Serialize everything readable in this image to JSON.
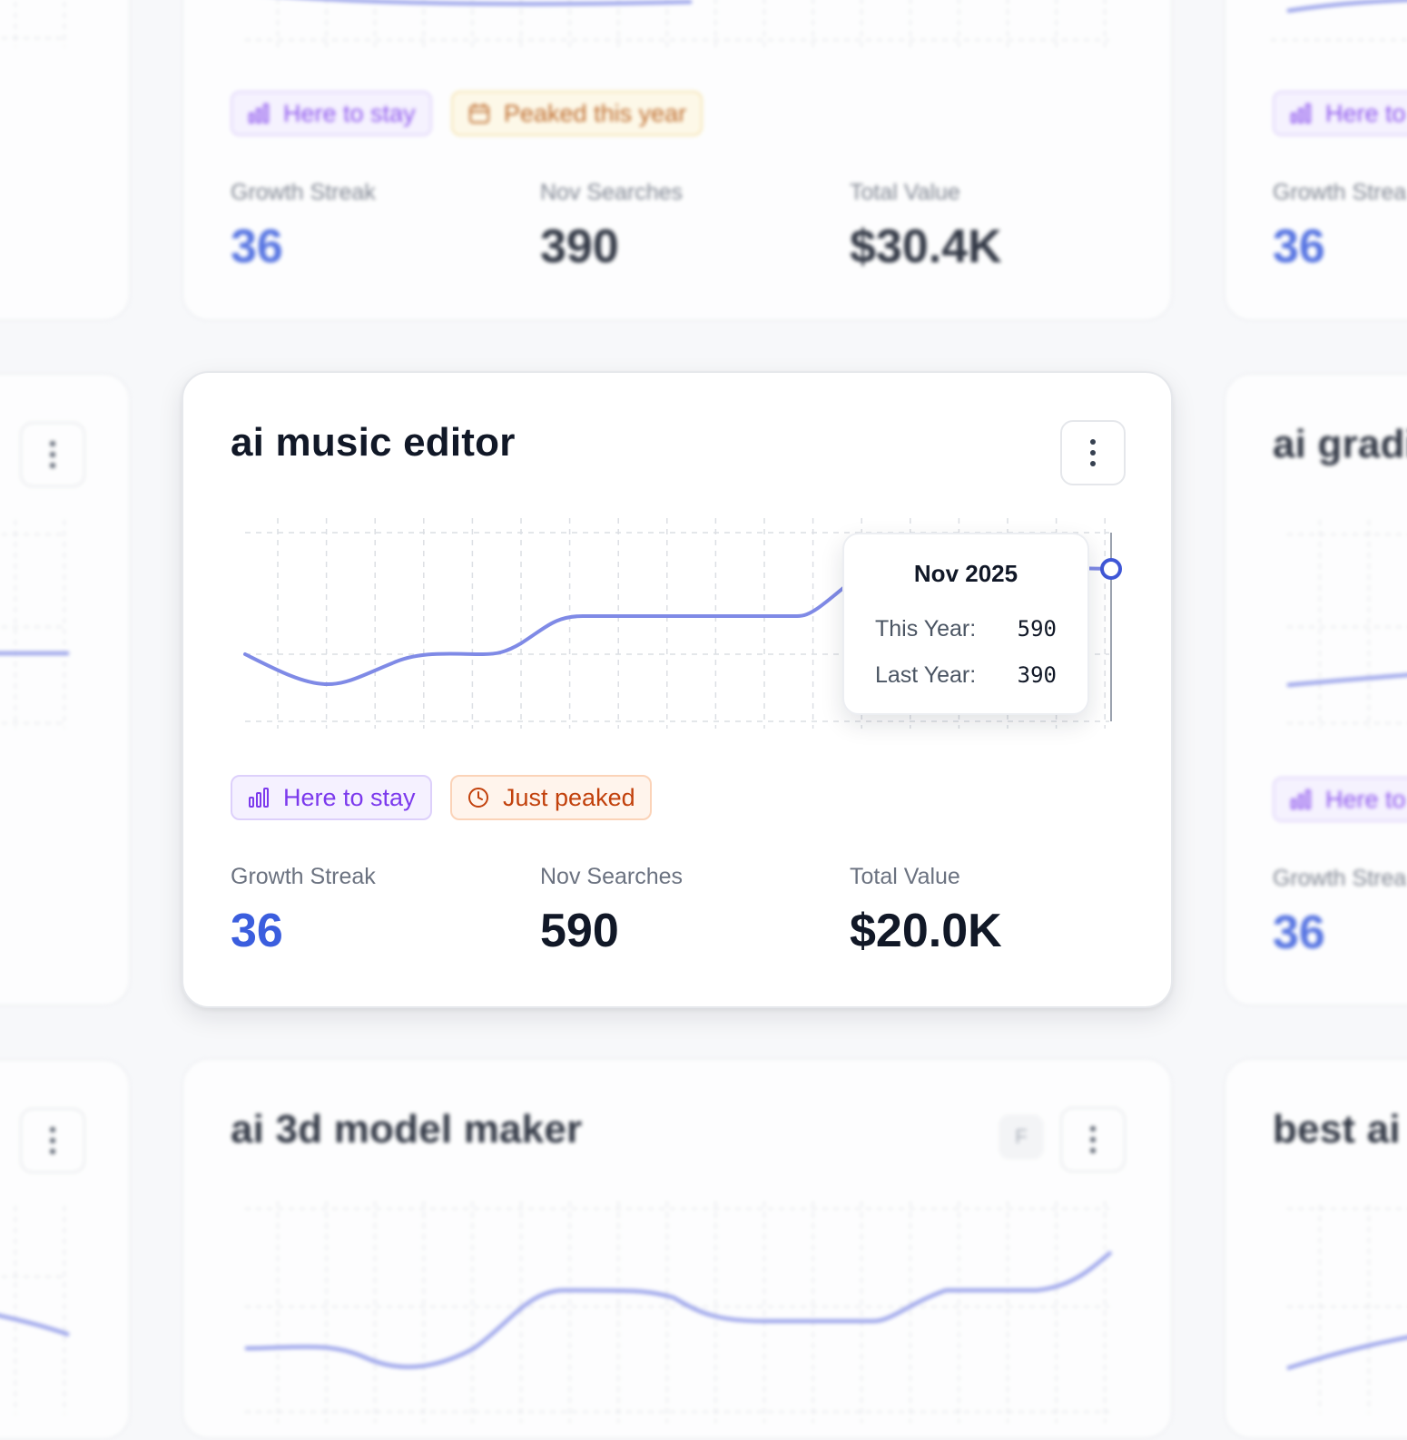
{
  "focused_card": {
    "title": "ai music editor",
    "badges": [
      {
        "label": "Here to stay",
        "icon": "bar-chart-icon"
      },
      {
        "label": "Just peaked",
        "icon": "clock-icon"
      }
    ],
    "stats": {
      "growth_streak_label": "Growth Streak",
      "growth_streak_value": "36",
      "searches_label": "Nov Searches",
      "searches_value": "590",
      "total_value_label": "Total Value",
      "total_value_value": "$20.0K"
    },
    "tooltip": {
      "title": "Nov 2025",
      "this_year_label": "This Year:",
      "this_year_value": "590",
      "last_year_label": "Last Year:",
      "last_year_value": "390"
    },
    "colors": {
      "line": "#7f8ae6",
      "marker": "#3f57d6",
      "accent_blue": "#3b5ede"
    }
  },
  "top_card": {
    "badges": [
      {
        "label": "Here to stay",
        "icon": "bar-chart-icon"
      },
      {
        "label": "Peaked this year",
        "icon": "calendar-icon"
      }
    ],
    "stats": {
      "growth_streak_label": "Growth Streak",
      "growth_streak_value": "36",
      "searches_label": "Nov Searches",
      "searches_value": "390",
      "total_value_label": "Total Value",
      "total_value_value": "$30.4K"
    }
  },
  "bottom_card": {
    "title": "ai 3d model maker",
    "letter_button": "F"
  },
  "right_cards": {
    "middle_title": "ai gradi",
    "bottom_title": "best ai",
    "badge_label": "Here to",
    "growth_streak_label": "Growth Strea",
    "growth_streak_value": "36"
  }
}
